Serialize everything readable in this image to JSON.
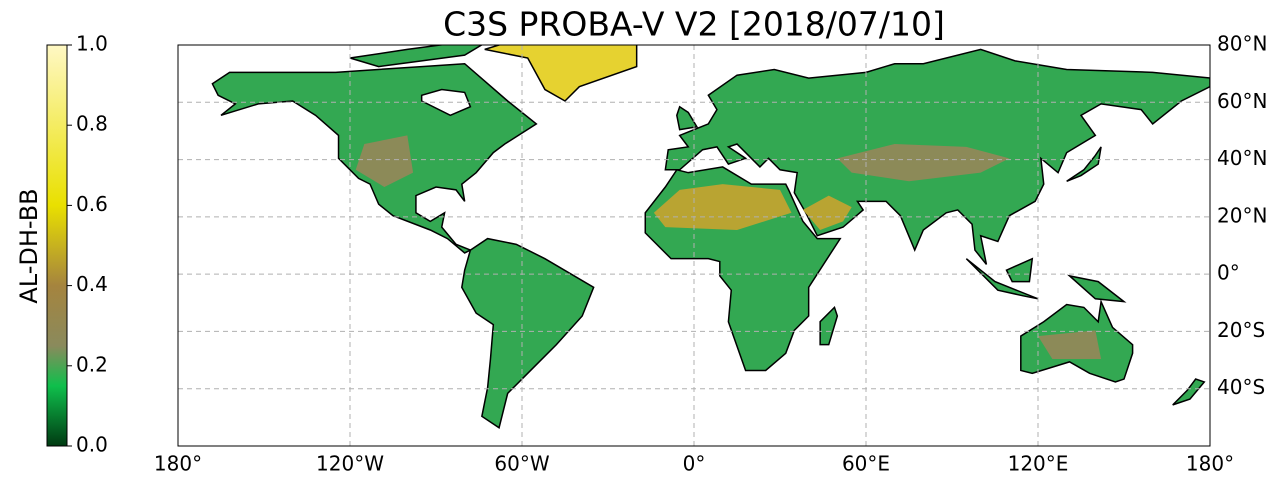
{
  "chart_data": {
    "type": "map",
    "title": "C3S PROBA-V V2 [2018/07/10]",
    "colorbar": {
      "label": "AL-DH-BB",
      "lim": [
        0,
        1
      ],
      "ticks": [
        {
          "value": 0,
          "label": "0.0"
        },
        {
          "value": 0.2,
          "label": "0.2"
        },
        {
          "value": 0.4,
          "label": "0.4"
        },
        {
          "value": 0.6,
          "label": "0.6"
        },
        {
          "value": 0.8,
          "label": "0.8"
        },
        {
          "value": 1,
          "label": "1.0"
        }
      ]
    },
    "xlim": [
      -180,
      180
    ],
    "ylim": [
      -60,
      80
    ],
    "xticks": [
      {
        "value": -180,
        "label": "180°"
      },
      {
        "value": -120,
        "label": "120°W"
      },
      {
        "value": -60,
        "label": "60°W"
      },
      {
        "value": 0,
        "label": "0°"
      },
      {
        "value": 60,
        "label": "60°E"
      },
      {
        "value": 120,
        "label": "120°E"
      },
      {
        "value": 180,
        "label": "180°"
      }
    ],
    "yticks": [
      {
        "value": 80,
        "label": "80°N"
      },
      {
        "value": 60,
        "label": "60°N"
      },
      {
        "value": 40,
        "label": "40°N"
      },
      {
        "value": 20,
        "label": "20°N"
      },
      {
        "value": 0,
        "label": "0°"
      },
      {
        "value": -20,
        "label": "20°S"
      },
      {
        "value": -40,
        "label": "40°S"
      }
    ],
    "grid": true
  }
}
